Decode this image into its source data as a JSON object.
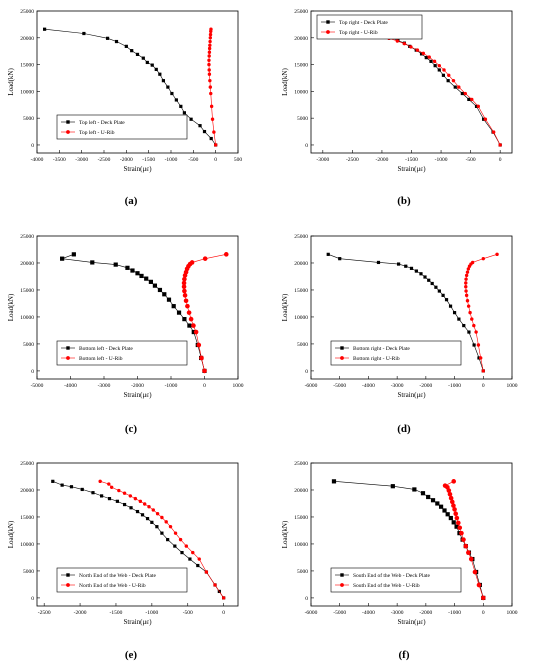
{
  "figure": {
    "panels": [
      "(a)",
      "(b)",
      "(c)",
      "(d)",
      "(e)",
      "(f)"
    ]
  },
  "chart_data": [
    {
      "type": "line",
      "caption": "(a)",
      "xlabel": "Strain(με)",
      "ylabel": "Load(kN)",
      "xlim": [
        -4000,
        500
      ],
      "ylim": [
        -1500,
        25000
      ],
      "xticks": [
        -4000,
        -3500,
        -3000,
        -2500,
        -2000,
        -1500,
        -1000,
        -500,
        0,
        500
      ],
      "yticks": [
        0,
        5000,
        10000,
        15000,
        20000,
        25000
      ],
      "legend_position": "lower-left",
      "series": [
        {
          "name": "Top left - Deck Plate",
          "color": "#000000",
          "marker": "square",
          "x": [
            0,
            -100,
            -250,
            -350,
            -550,
            -700,
            -780,
            -880,
            -980,
            -1070,
            -1170,
            -1250,
            -1330,
            -1420,
            -1530,
            -1620,
            -1750,
            -1880,
            -2000,
            -2220,
            -2420,
            -2950,
            -3830
          ],
          "y": [
            0,
            1200,
            2500,
            3600,
            4800,
            6000,
            7200,
            8400,
            9600,
            10800,
            12000,
            13200,
            14100,
            14900,
            15400,
            16200,
            16900,
            17600,
            18400,
            19300,
            19900,
            20800,
            21600
          ]
        },
        {
          "name": "Top left - U-Rib",
          "color": "#ff0000",
          "marker": "circle",
          "x": [
            0,
            -40,
            -70,
            -90,
            -110,
            -120,
            -130,
            -140,
            -145,
            -150,
            -150,
            -145,
            -140,
            -135,
            -130,
            -125,
            -120,
            -115,
            -110,
            -105
          ],
          "y": [
            0,
            2400,
            4800,
            7200,
            9600,
            10800,
            12000,
            13200,
            14000,
            15000,
            15800,
            16600,
            17300,
            18000,
            18600,
            19300,
            20000,
            20600,
            21200,
            21600
          ]
        }
      ]
    },
    {
      "type": "line",
      "caption": "(b)",
      "xlabel": "Strain(με)",
      "ylabel": "Load(kN)",
      "xlim": [
        -3200,
        200
      ],
      "ylim": [
        -1500,
        25000
      ],
      "xticks": [
        -3000,
        -2500,
        -2000,
        -1500,
        -1000,
        -500,
        0
      ],
      "yticks": [
        0,
        5000,
        10000,
        15000,
        20000,
        25000
      ],
      "legend_position": "top-left",
      "series": [
        {
          "name": "Top right - Deck Plate",
          "color": "#000000",
          "marker": "square",
          "x": [
            0,
            -120,
            -280,
            -400,
            -530,
            -640,
            -760,
            -880,
            -960,
            -1030,
            -1100,
            -1170,
            -1250,
            -1330,
            -1420,
            -1530,
            -1620,
            -1730,
            -1840,
            -1950,
            -2070,
            -2200,
            -2480,
            -2940
          ],
          "y": [
            0,
            2400,
            4800,
            7200,
            8500,
            9600,
            10800,
            12000,
            13000,
            14000,
            14800,
            15600,
            16300,
            17000,
            17700,
            18400,
            19000,
            19500,
            20000,
            20400,
            20800,
            21100,
            21300,
            21600
          ]
        },
        {
          "name": "Top right - U-Rib",
          "color": "#ff0000",
          "marker": "circle",
          "x": [
            0,
            -110,
            -250,
            -370,
            -480,
            -590,
            -700,
            -790,
            -870,
            -950,
            -1030,
            -1110,
            -1200,
            -1300,
            -1400,
            -1510,
            -1620,
            -1740,
            -1880,
            -2020,
            -2200,
            -2500
          ],
          "y": [
            0,
            2400,
            4800,
            7200,
            8500,
            9600,
            10800,
            12000,
            13000,
            14000,
            14800,
            15600,
            16400,
            17100,
            17700,
            18300,
            18900,
            19400,
            19900,
            20400,
            20900,
            21600
          ]
        }
      ]
    },
    {
      "type": "line",
      "caption": "(c)",
      "xlabel": "Strain(με)",
      "ylabel": "Load(kN)",
      "xlim": [
        -5000,
        1000
      ],
      "ylim": [
        -1500,
        25000
      ],
      "xticks": [
        -5000,
        -4000,
        -3000,
        -2000,
        -1000,
        0,
        1000
      ],
      "yticks": [
        0,
        5000,
        10000,
        15000,
        20000,
        25000
      ],
      "legend_position": "lower-left",
      "series": [
        {
          "name": "Bottom left - Deck Plate",
          "color": "#000000",
          "marker": "square",
          "x": [
            0,
            -100,
            -200,
            -320,
            -450,
            -600,
            -760,
            -920,
            -1060,
            -1200,
            -1330,
            -1480,
            -1600,
            -1740,
            -1880,
            -2000,
            -2150,
            -2300,
            -2650,
            -3350,
            -4250,
            -3900
          ],
          "y": [
            0,
            2400,
            4800,
            7200,
            8400,
            9600,
            10800,
            12000,
            13200,
            14200,
            15000,
            15800,
            16500,
            17100,
            17600,
            18100,
            18600,
            19100,
            19700,
            20100,
            20800,
            21600
          ]
        },
        {
          "name": "Bottom left - U-Rib",
          "color": "#ff0000",
          "marker": "circle",
          "x": [
            0,
            -90,
            -170,
            -250,
            -330,
            -400,
            -460,
            -510,
            -550,
            -580,
            -600,
            -610,
            -610,
            -600,
            -580,
            -550,
            -520,
            -480,
            -430,
            -370,
            20,
            650
          ],
          "y": [
            0,
            2400,
            4800,
            7200,
            8400,
            9600,
            10800,
            12000,
            13000,
            14000,
            14800,
            15600,
            16300,
            17000,
            17700,
            18300,
            18900,
            19400,
            19800,
            20100,
            20800,
            21600
          ]
        }
      ]
    },
    {
      "type": "line",
      "caption": "(d)",
      "xlabel": "Strain(με)",
      "ylabel": "Load(kN)",
      "xlim": [
        -6000,
        1000
      ],
      "ylim": [
        -1500,
        25000
      ],
      "xticks": [
        -6000,
        -5000,
        -4000,
        -3000,
        -2000,
        -1000,
        0,
        1000
      ],
      "yticks": [
        0,
        5000,
        10000,
        15000,
        20000,
        25000
      ],
      "legend_position": "lower-left",
      "series": [
        {
          "name": "Bottom right - Deck Plate",
          "color": "#000000",
          "marker": "square",
          "x": [
            0,
            -150,
            -320,
            -500,
            -680,
            -850,
            -1000,
            -1140,
            -1280,
            -1400,
            -1530,
            -1650,
            -1780,
            -1900,
            -2030,
            -2170,
            -2330,
            -2500,
            -2700,
            -2950,
            -3650,
            -5000,
            -5400
          ],
          "y": [
            0,
            2400,
            4800,
            7200,
            8400,
            9600,
            10800,
            12000,
            13200,
            14000,
            14800,
            15500,
            16200,
            16800,
            17400,
            18000,
            18500,
            19000,
            19400,
            19800,
            20100,
            20800,
            21600
          ]
        },
        {
          "name": "Bottom right - U-Rib",
          "color": "#ff0000",
          "marker": "circle",
          "x": [
            0,
            -90,
            -170,
            -250,
            -330,
            -400,
            -460,
            -510,
            -550,
            -580,
            -600,
            -610,
            -610,
            -600,
            -580,
            -550,
            -520,
            -480,
            -430,
            -370,
            0,
            480
          ],
          "y": [
            0,
            2400,
            4800,
            7200,
            8400,
            9600,
            10800,
            12000,
            13000,
            14000,
            14800,
            15600,
            16300,
            17000,
            17700,
            18300,
            18900,
            19400,
            19800,
            20100,
            20800,
            21600
          ]
        }
      ]
    },
    {
      "type": "line",
      "caption": "(e)",
      "xlabel": "Strain(με)",
      "ylabel": "Load(kN)",
      "xlim": [
        -2600,
        200
      ],
      "ylim": [
        -1500,
        25000
      ],
      "xticks": [
        -2500,
        -2000,
        -1500,
        -1000,
        -500,
        0
      ],
      "yticks": [
        0,
        5000,
        10000,
        15000,
        20000,
        25000
      ],
      "legend_position": "lower-left",
      "series": [
        {
          "name": "North End of the Web - Deck Plate",
          "color": "#000000",
          "marker": "square",
          "x": [
            0,
            -60,
            -120,
            -240,
            -360,
            -470,
            -580,
            -680,
            -780,
            -860,
            -930,
            -1000,
            -1060,
            -1130,
            -1200,
            -1290,
            -1380,
            -1480,
            -1590,
            -1700,
            -1820,
            -1970,
            -2120,
            -2250,
            -2380
          ],
          "y": [
            0,
            1200,
            2400,
            4800,
            6000,
            7200,
            8400,
            9600,
            10800,
            12000,
            13200,
            14000,
            14700,
            15400,
            16000,
            16700,
            17300,
            17900,
            18400,
            18900,
            19500,
            20100,
            20600,
            20900,
            21600
          ]
        },
        {
          "name": "North End of the Web - U-Rib",
          "color": "#ff0000",
          "marker": "circle",
          "x": [
            0,
            -120,
            -240,
            -340,
            -430,
            -520,
            -600,
            -670,
            -740,
            -800,
            -860,
            -920,
            -980,
            -1040,
            -1100,
            -1160,
            -1230,
            -1300,
            -1380,
            -1460,
            -1560,
            -1600,
            -1720
          ],
          "y": [
            0,
            2400,
            4800,
            7200,
            8400,
            9600,
            10800,
            12000,
            13200,
            14100,
            14900,
            15600,
            16300,
            16900,
            17400,
            17900,
            18400,
            18900,
            19400,
            19900,
            20500,
            21100,
            21600
          ]
        }
      ]
    },
    {
      "type": "line",
      "caption": "(f)",
      "xlabel": "Strain(με)",
      "ylabel": "Load(kN)",
      "xlim": [
        -6000,
        1000
      ],
      "ylim": [
        -1500,
        25000
      ],
      "xticks": [
        -6000,
        -5000,
        -4000,
        -3000,
        -2000,
        -1000,
        0,
        1000
      ],
      "yticks": [
        0,
        5000,
        10000,
        15000,
        20000,
        25000
      ],
      "legend_position": "lower-left",
      "series": [
        {
          "name": "South End of the Web - Deck Plate",
          "color": "#000000",
          "marker": "square",
          "x": [
            0,
            -120,
            -250,
            -380,
            -500,
            -610,
            -720,
            -830,
            -930,
            -1030,
            -1130,
            -1240,
            -1350,
            -1470,
            -1600,
            -1750,
            -1920,
            -2100,
            -2400,
            -3150,
            -5200
          ],
          "y": [
            0,
            2400,
            4800,
            7200,
            8400,
            9600,
            10800,
            12000,
            13200,
            14000,
            14800,
            15500,
            16200,
            16900,
            17500,
            18100,
            18700,
            19400,
            20100,
            20700,
            21600
          ]
        },
        {
          "name": "South End of the Web - U-Rib",
          "color": "#ff0000",
          "marker": "circle",
          "x": [
            0,
            -150,
            -290,
            -420,
            -520,
            -610,
            -690,
            -760,
            -820,
            -870,
            -920,
            -960,
            -1000,
            -1040,
            -1080,
            -1120,
            -1160,
            -1200,
            -1250,
            -1330,
            -1030
          ],
          "y": [
            0,
            2400,
            4800,
            7200,
            8400,
            9600,
            10800,
            12000,
            13000,
            13900,
            14800,
            15600,
            16400,
            17100,
            17800,
            18500,
            19200,
            19900,
            20500,
            20800,
            21600
          ]
        }
      ]
    }
  ]
}
